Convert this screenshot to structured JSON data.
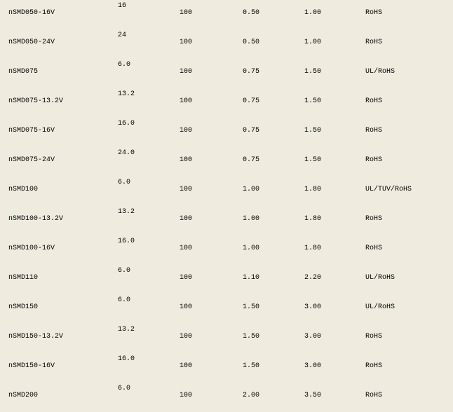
{
  "table": {
    "rows": [
      {
        "part": "nSMD050-16V",
        "voltage": "16",
        "current": "100",
        "ihold": "0.50",
        "itrip": "1.00",
        "cert": "RoHS"
      },
      {
        "part": "nSMD050-24V",
        "voltage": "24",
        "current": "100",
        "ihold": "0.50",
        "itrip": "1.00",
        "cert": "RoHS"
      },
      {
        "part": "nSMD075",
        "voltage": "6.0",
        "current": "100",
        "ihold": "0.75",
        "itrip": "1.50",
        "cert": "UL/RoHS"
      },
      {
        "part": "nSMD075-13.2V",
        "voltage": "13.2",
        "current": "100",
        "ihold": "0.75",
        "itrip": "1.50",
        "cert": "RoHS"
      },
      {
        "part": "nSMD075-16V",
        "voltage": "16.0",
        "current": "100",
        "ihold": "0.75",
        "itrip": "1.50",
        "cert": "RoHS"
      },
      {
        "part": "nSMD075-24V",
        "voltage": "24.0",
        "current": "100",
        "ihold": "0.75",
        "itrip": "1.50",
        "cert": "RoHS"
      },
      {
        "part": "nSMD100",
        "voltage": "6.0",
        "current": "100",
        "ihold": "1.00",
        "itrip": "1.80",
        "cert": "UL/TUV/RoHS"
      },
      {
        "part": "nSMD100-13.2V",
        "voltage": "13.2",
        "current": "100",
        "ihold": "1.00",
        "itrip": "1.80",
        "cert": "RoHS"
      },
      {
        "part": "nSMD100-16V",
        "voltage": "16.0",
        "current": "100",
        "ihold": "1.00",
        "itrip": "1.80",
        "cert": "RoHS"
      },
      {
        "part": "nSMD110",
        "voltage": "6.0",
        "current": "100",
        "ihold": "1.10",
        "itrip": "2.20",
        "cert": "UL/RoHS"
      },
      {
        "part": "nSMD150",
        "voltage": "6.0",
        "current": "100",
        "ihold": "1.50",
        "itrip": "3.00",
        "cert": "UL/RoHS"
      },
      {
        "part": "nSMD150-13.2V",
        "voltage": "13.2",
        "current": "100",
        "ihold": "1.50",
        "itrip": "3.00",
        "cert": "RoHS"
      },
      {
        "part": "nSMD150-16V",
        "voltage": "16.0",
        "current": "100",
        "ihold": "1.50",
        "itrip": "3.00",
        "cert": "RoHS"
      },
      {
        "part": "nSMD200",
        "voltage": "6.0",
        "current": "100",
        "ihold": "2.00",
        "itrip": "3.50",
        "cert": "RoHS"
      }
    ]
  }
}
